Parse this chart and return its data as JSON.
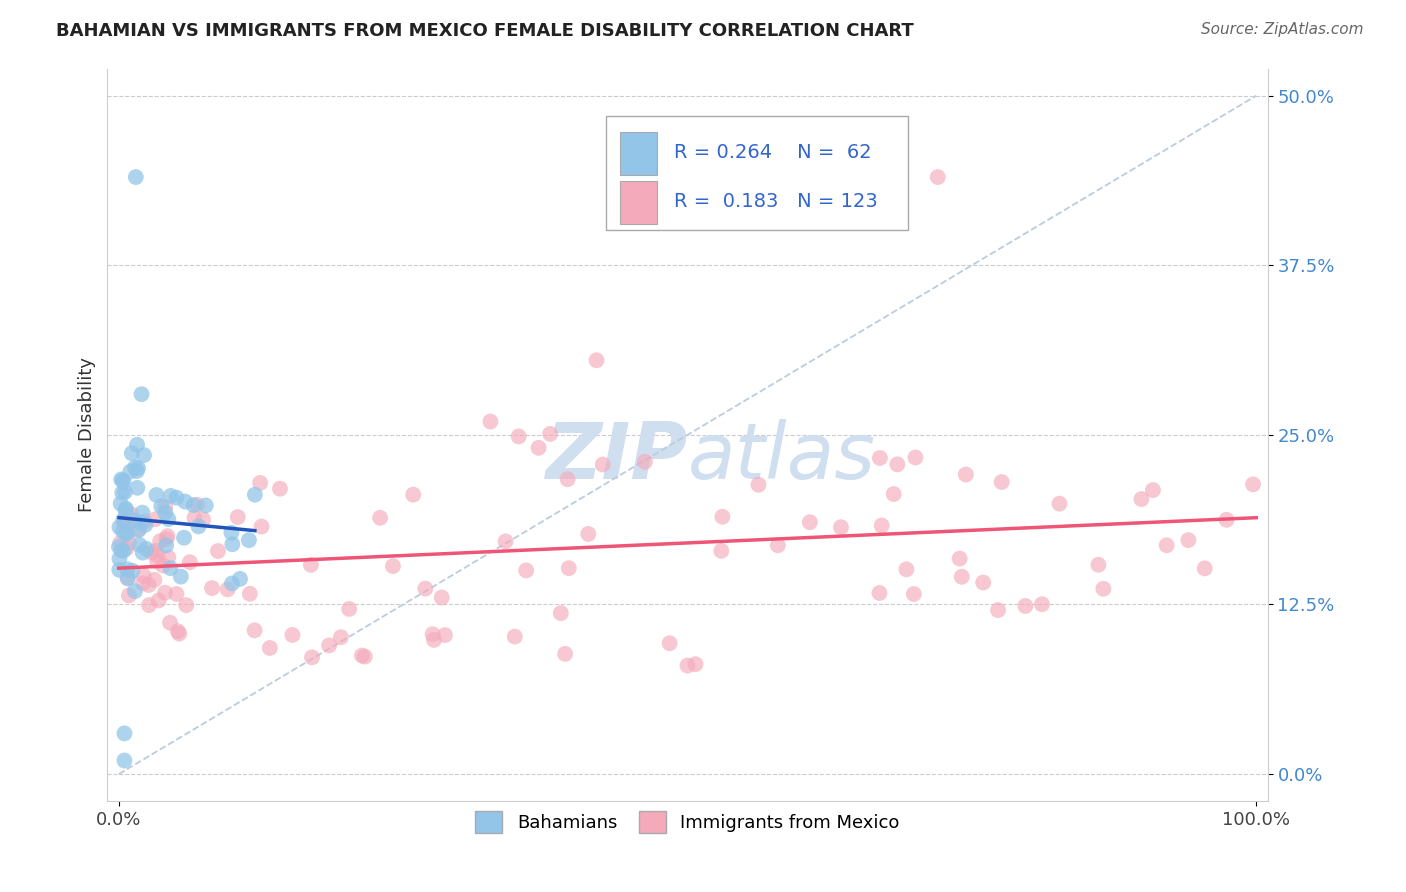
{
  "title": "BAHAMIAN VS IMMIGRANTS FROM MEXICO FEMALE DISABILITY CORRELATION CHART",
  "source": "Source: ZipAtlas.com",
  "ylabel": "Female Disability",
  "xlim": [
    -0.01,
    1.01
  ],
  "ylim": [
    -0.02,
    0.52
  ],
  "yticks": [
    0.0,
    0.125,
    0.25,
    0.375,
    0.5
  ],
  "xticks": [
    0.0,
    1.0
  ],
  "legend_R1": "0.264",
  "legend_N1": "62",
  "legend_R2": "0.183",
  "legend_N2": "123",
  "blue_color": "#92C5E8",
  "pink_color": "#F4AABB",
  "blue_line_color": "#2255BB",
  "pink_line_color": "#EE5577",
  "diag_color": "#BBCCDD",
  "watermark_color": "#D0DFF0",
  "title_fontsize": 13,
  "source_fontsize": 11,
  "tick_fontsize": 13
}
